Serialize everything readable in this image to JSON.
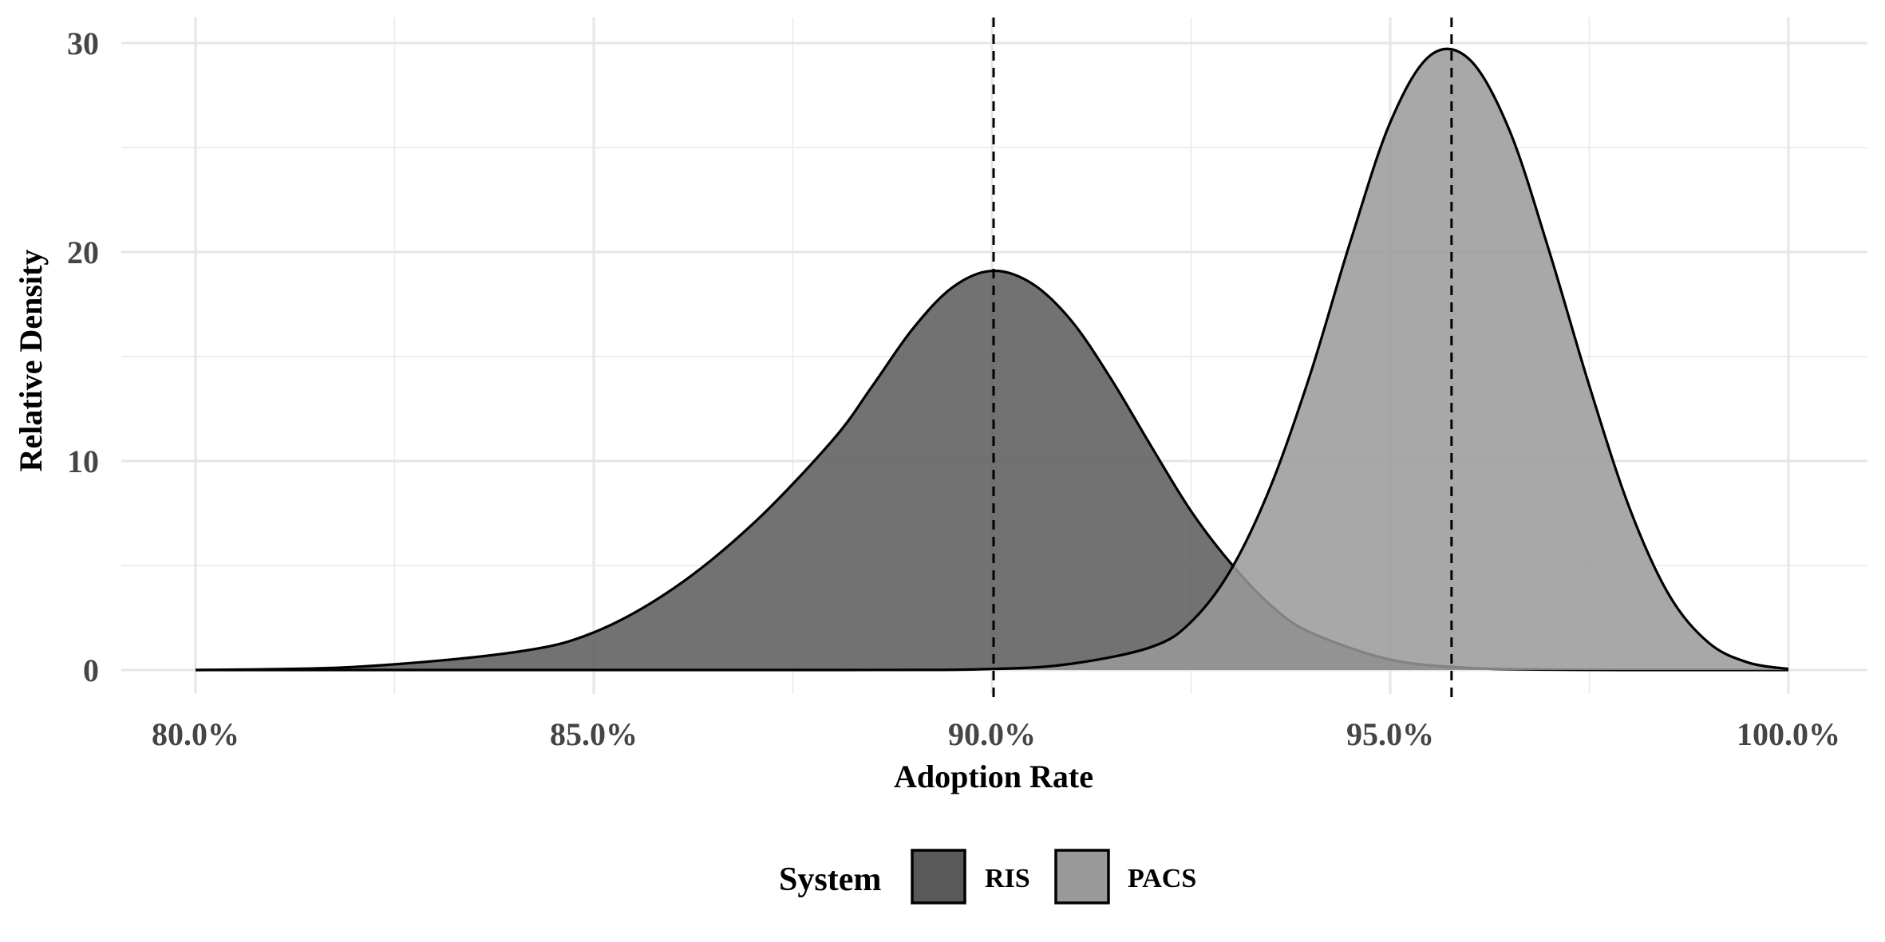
{
  "chart_data": {
    "type": "area",
    "subtype": "density",
    "title": "",
    "xlabel": "Adoption Rate",
    "ylabel": "Relative Density",
    "xlim": [
      0.8,
      1.0
    ],
    "ylim": [
      0,
      30
    ],
    "x_ticks": [
      0.8,
      0.85,
      0.9,
      0.95,
      1.0
    ],
    "x_tick_labels": [
      "80.0%",
      "85.0%",
      "90.0%",
      "95.0%",
      "100.0%"
    ],
    "y_ticks": [
      0,
      10,
      20,
      30
    ],
    "y_tick_labels": [
      "0",
      "10",
      "20",
      "30"
    ],
    "grid": true,
    "legend": {
      "title": "System",
      "position": "bottom"
    },
    "series": [
      {
        "name": "RIS",
        "color": "#595959",
        "mean_line": 0.9002,
        "x": [
          0.8,
          0.82,
          0.84,
          0.85,
          0.86,
          0.87,
          0.88,
          0.885,
          0.89,
          0.895,
          0.9,
          0.905,
          0.91,
          0.915,
          0.92,
          0.925,
          0.93,
          0.935,
          0.94,
          0.95,
          0.96,
          0.97,
          0.98,
          1.0
        ],
        "values": [
          0.0,
          0.15,
          0.85,
          1.8,
          3.9,
          7.0,
          11.0,
          13.6,
          16.3,
          18.3,
          19.1,
          18.5,
          16.7,
          13.9,
          10.7,
          7.6,
          5.1,
          3.1,
          1.8,
          0.5,
          0.1,
          0.02,
          0.0,
          0.0
        ]
      },
      {
        "name": "PACS",
        "color": "#999999",
        "mean_line": 0.9577,
        "x": [
          0.8,
          0.88,
          0.9,
          0.91,
          0.92,
          0.925,
          0.93,
          0.935,
          0.94,
          0.945,
          0.95,
          0.955,
          0.96,
          0.965,
          0.97,
          0.975,
          0.98,
          0.985,
          0.99,
          0.995,
          1.0
        ],
        "values": [
          0.0,
          0.0,
          0.05,
          0.3,
          1.1,
          2.3,
          4.8,
          8.8,
          14.2,
          20.5,
          26.2,
          29.4,
          29.2,
          25.8,
          20.0,
          13.6,
          7.8,
          3.6,
          1.3,
          0.35,
          0.05
        ]
      }
    ]
  }
}
